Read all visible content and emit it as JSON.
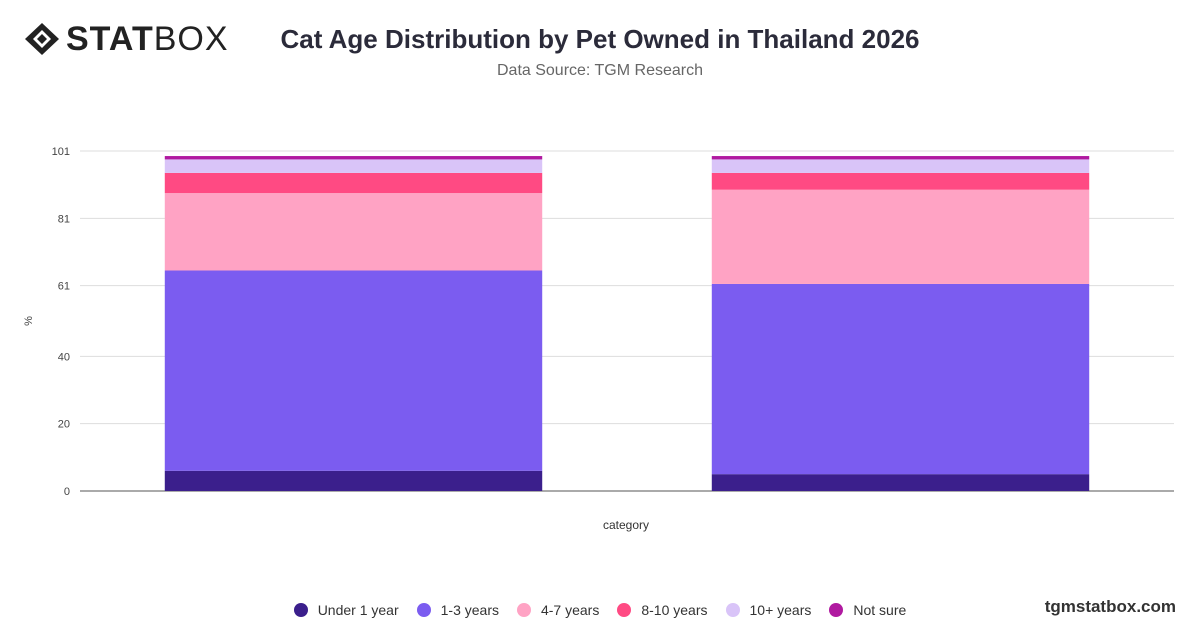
{
  "brand": {
    "logo_bold": "STAT",
    "logo_light": "BOX",
    "footer": "tgmstatbox.com"
  },
  "chart_data": {
    "type": "bar",
    "stacked": true,
    "title": "Cat Age Distribution by Pet Owned in Thailand 2026",
    "subtitle": "Data Source: TGM Research",
    "xlabel": "category",
    "ylabel": "%",
    "ylim": [
      0,
      101
    ],
    "yticks": [
      0,
      20,
      40,
      61,
      81,
      101
    ],
    "grid": true,
    "legend_position": "bottom",
    "categories": [
      "",
      ""
    ],
    "series": [
      {
        "name": "Under 1 year",
        "color": "#3b1f8c",
        "values": [
          6,
          5
        ]
      },
      {
        "name": "1-3 years",
        "color": "#7b5cf0",
        "values": [
          59.5,
          56.5
        ]
      },
      {
        "name": "4-7 years",
        "color": "#ffa3c4",
        "values": [
          23,
          28
        ]
      },
      {
        "name": "8-10 years",
        "color": "#ff4a83",
        "values": [
          6,
          5
        ]
      },
      {
        "name": "10+ years",
        "color": "#d9c4f8",
        "values": [
          4,
          4
        ]
      },
      {
        "name": "Not sure",
        "color": "#b01aa0",
        "values": [
          1,
          1
        ]
      }
    ]
  }
}
